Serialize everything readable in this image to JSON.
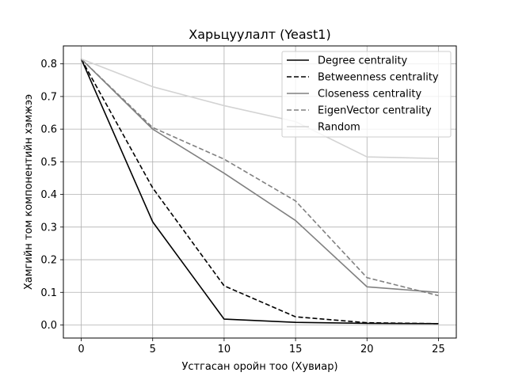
{
  "chart_data": {
    "type": "line",
    "title": "Харьцуулалт (Yeast1)",
    "xlabel": "Устгасан оройн тоо (Хувиар)",
    "ylabel": "Хамгийн том компонентийн хэмжээ",
    "x": [
      0,
      5,
      10,
      15,
      20,
      25
    ],
    "xticks": [
      0,
      5,
      10,
      15,
      20,
      25
    ],
    "yticks": [
      0.0,
      0.1,
      0.2,
      0.3,
      0.4,
      0.5,
      0.6,
      0.7,
      0.8
    ],
    "xlim": [
      -1.25,
      26.25
    ],
    "ylim": [
      -0.04,
      0.855
    ],
    "grid": true,
    "legend_position": "top-right",
    "series": [
      {
        "name": "Degree centrality",
        "color": "#000000",
        "dash": "solid",
        "values": [
          0.815,
          0.316,
          0.018,
          0.008,
          0.005,
          0.004
        ]
      },
      {
        "name": "Betweenness centrality",
        "color": "#000000",
        "dash": "dashed",
        "values": [
          0.815,
          0.42,
          0.12,
          0.025,
          0.007,
          0.004
        ]
      },
      {
        "name": "Closeness centrality",
        "color": "#808080",
        "dash": "solid",
        "values": [
          0.815,
          0.6,
          0.465,
          0.32,
          0.117,
          0.1
        ]
      },
      {
        "name": "EigenVector centrality",
        "color": "#808080",
        "dash": "dashed",
        "values": [
          0.815,
          0.605,
          0.508,
          0.38,
          0.145,
          0.09
        ]
      },
      {
        "name": "Random",
        "color": "#d3d3d3",
        "dash": "solid",
        "values": [
          0.815,
          0.73,
          0.672,
          0.623,
          0.515,
          0.51
        ]
      }
    ]
  }
}
